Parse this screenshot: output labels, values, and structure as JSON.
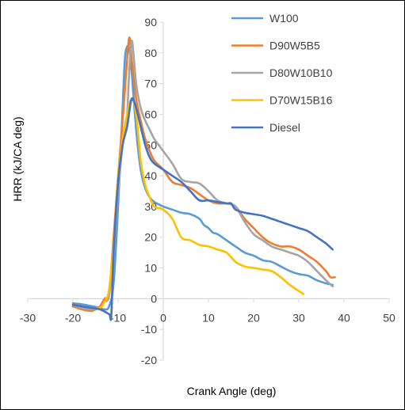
{
  "chart_data": {
    "type": "line",
    "title": "",
    "xlabel": "Crank Angle (deg)",
    "ylabel": "HRR (kJ/CA deg)",
    "xlim": [
      -30,
      50
    ],
    "ylim": [
      -20,
      90
    ],
    "x_ticks": [
      -30,
      -20,
      -10,
      0,
      10,
      20,
      30,
      40,
      50
    ],
    "y_ticks": [
      90,
      80,
      70,
      60,
      50,
      40,
      30,
      20,
      10,
      0,
      -10,
      -20
    ],
    "x_tick_labels": [
      "-30",
      "-20",
      "-10",
      "0",
      "10",
      "20",
      "30",
      "40",
      "50"
    ],
    "y_tick_labels": [
      "90",
      "80",
      "70",
      "60",
      "50",
      "40",
      "30",
      "20",
      "10",
      "0",
      "-10",
      "-20"
    ],
    "grid": "vertical axis line only",
    "legend_position": "top-right",
    "series": [
      {
        "name": "W100",
        "color": "#5B9BD5",
        "points": [
          [
            -20,
            -1.5
          ],
          [
            -18,
            -1.8
          ],
          [
            -16,
            -2.4
          ],
          [
            -14,
            -3.0
          ],
          [
            -13,
            -3.5
          ],
          [
            -12,
            -2.5
          ],
          [
            -11,
            5
          ],
          [
            -10,
            30
          ],
          [
            -9,
            62
          ],
          [
            -8.5,
            78
          ],
          [
            -8,
            82
          ],
          [
            -7.5,
            81
          ],
          [
            -7,
            74
          ],
          [
            -6,
            55
          ],
          [
            -5,
            42
          ],
          [
            -4,
            36
          ],
          [
            -3,
            33
          ],
          [
            -2,
            31.5
          ],
          [
            0,
            30
          ],
          [
            2,
            29
          ],
          [
            4,
            28
          ],
          [
            6,
            27.5
          ],
          [
            8,
            26
          ],
          [
            9,
            24
          ],
          [
            10,
            23
          ],
          [
            11,
            21.5
          ],
          [
            12,
            21
          ],
          [
            14,
            19
          ],
          [
            16,
            17
          ],
          [
            18,
            15
          ],
          [
            20,
            14
          ],
          [
            22,
            12.5
          ],
          [
            24,
            12
          ],
          [
            26,
            10.5
          ],
          [
            28,
            9
          ],
          [
            30,
            8
          ],
          [
            32,
            7.5
          ],
          [
            34,
            6
          ],
          [
            36,
            5
          ],
          [
            37.5,
            4.5
          ]
        ]
      },
      {
        "name": "D90W5B5",
        "color": "#ED7D31",
        "points": [
          [
            -20,
            -2.5
          ],
          [
            -18,
            -3.5
          ],
          [
            -16,
            -4.0
          ],
          [
            -15,
            -3.5
          ],
          [
            -14,
            -2.5
          ],
          [
            -13,
            0
          ],
          [
            -12,
            2
          ],
          [
            -11,
            20
          ],
          [
            -10,
            40
          ],
          [
            -9,
            58
          ],
          [
            -8.5,
            68
          ],
          [
            -8,
            78
          ],
          [
            -7.5,
            85
          ],
          [
            -7,
            78
          ],
          [
            -6,
            65
          ],
          [
            -5,
            58
          ],
          [
            -4,
            52
          ],
          [
            -3,
            48
          ],
          [
            -2,
            45
          ],
          [
            0,
            42
          ],
          [
            2,
            38
          ],
          [
            4,
            37
          ],
          [
            6,
            36
          ],
          [
            8,
            34
          ],
          [
            10,
            32
          ],
          [
            12,
            31
          ],
          [
            14,
            31
          ],
          [
            16,
            30
          ],
          [
            18,
            26
          ],
          [
            20,
            23
          ],
          [
            22,
            20
          ],
          [
            24,
            18
          ],
          [
            26,
            17
          ],
          [
            28,
            17
          ],
          [
            30,
            16
          ],
          [
            32,
            14
          ],
          [
            34,
            12
          ],
          [
            36,
            9
          ],
          [
            37,
            7
          ],
          [
            38,
            7
          ]
        ]
      },
      {
        "name": "D80W10B10",
        "color": "#A5A5A5",
        "points": [
          [
            -20,
            -2
          ],
          [
            -18,
            -3
          ],
          [
            -16,
            -3.5
          ],
          [
            -14,
            -3
          ],
          [
            -13,
            -1
          ],
          [
            -12,
            1
          ],
          [
            -11,
            15
          ],
          [
            -10,
            35
          ],
          [
            -9,
            50
          ],
          [
            -8.5,
            56
          ],
          [
            -8,
            60
          ],
          [
            -7.5,
            75
          ],
          [
            -7,
            84
          ],
          [
            -6.5,
            78
          ],
          [
            -6,
            70
          ],
          [
            -5,
            62
          ],
          [
            -4,
            58
          ],
          [
            -3,
            55
          ],
          [
            -2,
            52
          ],
          [
            -1,
            50
          ],
          [
            0,
            48
          ],
          [
            2,
            44
          ],
          [
            4,
            39
          ],
          [
            6,
            38
          ],
          [
            8,
            37.5
          ],
          [
            10,
            35
          ],
          [
            12,
            32
          ],
          [
            14,
            31
          ],
          [
            16,
            30
          ],
          [
            18,
            25
          ],
          [
            20,
            21
          ],
          [
            22,
            19
          ],
          [
            24,
            17
          ],
          [
            26,
            16
          ],
          [
            28,
            15
          ],
          [
            30,
            14
          ],
          [
            32,
            12
          ],
          [
            34,
            9
          ],
          [
            36,
            6
          ],
          [
            37.5,
            4
          ]
        ]
      },
      {
        "name": "D70W15B16",
        "color": "#FFC000",
        "points": [
          [
            -20,
            -2
          ],
          [
            -18,
            -2.5
          ],
          [
            -16,
            -3
          ],
          [
            -14,
            -3
          ],
          [
            -13,
            -1
          ],
          [
            -12,
            3
          ],
          [
            -11,
            18
          ],
          [
            -10,
            40
          ],
          [
            -9,
            52
          ],
          [
            -8,
            60
          ],
          [
            -7,
            65
          ],
          [
            -6,
            60
          ],
          [
            -5,
            45
          ],
          [
            -4,
            37
          ],
          [
            -3,
            33
          ],
          [
            -2,
            30
          ],
          [
            0,
            29
          ],
          [
            2,
            26
          ],
          [
            4,
            20
          ],
          [
            6,
            19
          ],
          [
            8,
            17.5
          ],
          [
            10,
            17
          ],
          [
            12,
            16
          ],
          [
            14,
            15
          ],
          [
            16,
            12
          ],
          [
            18,
            10.5
          ],
          [
            20,
            10
          ],
          [
            22,
            9.5
          ],
          [
            24,
            9
          ],
          [
            26,
            7
          ],
          [
            28,
            4.5
          ],
          [
            30,
            2.5
          ],
          [
            31,
            1.5
          ]
        ]
      },
      {
        "name": "Diesel",
        "color": "#4472C4",
        "points": [
          [
            -20,
            -2
          ],
          [
            -18,
            -2.5
          ],
          [
            -16,
            -3
          ],
          [
            -14,
            -3.5
          ],
          [
            -12,
            -5
          ],
          [
            -11.5,
            -5.5
          ],
          [
            -11,
            15
          ],
          [
            -10,
            38
          ],
          [
            -9,
            50
          ],
          [
            -8,
            56
          ],
          [
            -7,
            65
          ],
          [
            -6,
            62
          ],
          [
            -5,
            56
          ],
          [
            -4,
            50
          ],
          [
            -3,
            46
          ],
          [
            -2,
            44
          ],
          [
            0,
            42
          ],
          [
            2,
            40
          ],
          [
            4,
            38
          ],
          [
            6,
            35
          ],
          [
            8,
            32
          ],
          [
            10,
            32
          ],
          [
            12,
            31.5
          ],
          [
            14,
            31
          ],
          [
            15,
            31
          ],
          [
            16,
            29
          ],
          [
            18,
            28
          ],
          [
            20,
            27.5
          ],
          [
            22,
            27
          ],
          [
            24,
            26
          ],
          [
            26,
            25
          ],
          [
            28,
            24
          ],
          [
            30,
            23
          ],
          [
            32,
            22
          ],
          [
            34,
            20
          ],
          [
            36,
            18
          ],
          [
            37.5,
            16
          ]
        ]
      }
    ]
  }
}
